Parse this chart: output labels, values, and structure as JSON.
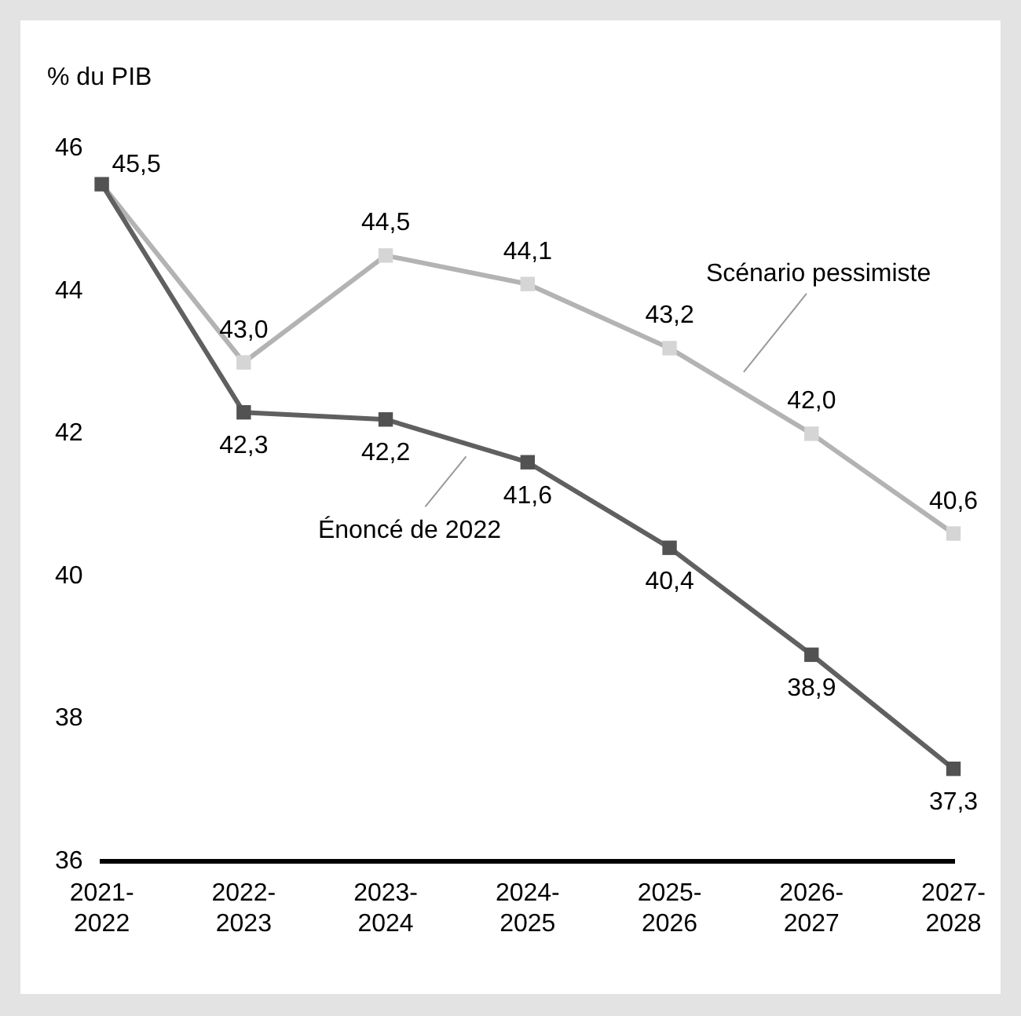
{
  "chart_data": {
    "type": "line",
    "ylabel": "% du PIB",
    "categories": [
      "2021-2022",
      "2022-2023",
      "2023-2024",
      "2024-2025",
      "2025-2026",
      "2026-2027",
      "2027-2028"
    ],
    "series": [
      {
        "name": "Scénario pessimiste",
        "color": "#b3b3b3",
        "values": [
          45.5,
          43.0,
          44.5,
          44.1,
          43.2,
          42.0,
          40.6
        ],
        "value_labels": [
          null,
          "43,0",
          "44,5",
          "44,1",
          "43,2",
          "42,0",
          "40,6"
        ]
      },
      {
        "name": "Énoncé de 2022",
        "color": "#606060",
        "values": [
          45.5,
          42.3,
          42.2,
          41.6,
          40.4,
          38.9,
          37.3
        ],
        "value_labels": [
          "45,5",
          "42,3",
          "42,2",
          "41,6",
          "40,4",
          "38,9",
          "37,3"
        ]
      }
    ],
    "ylim": [
      36,
      46
    ],
    "yticks": [
      36,
      38,
      40,
      42,
      44,
      46
    ],
    "grid": false,
    "legend": false,
    "marker": "square",
    "line_style": "solid"
  }
}
